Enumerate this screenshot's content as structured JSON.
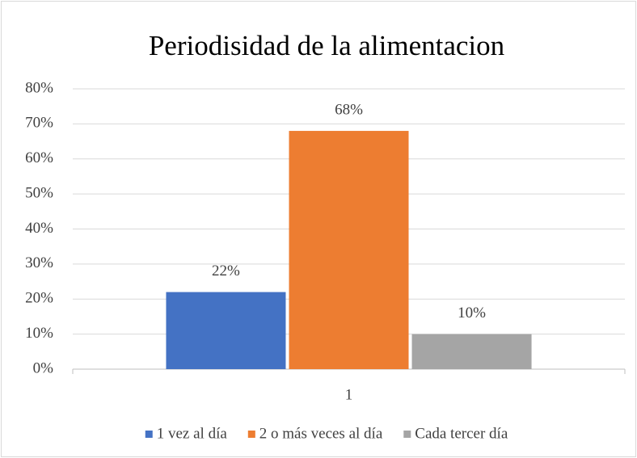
{
  "chart_data": {
    "type": "bar",
    "title": "Periodisidad de la alimentacion",
    "categories": [
      "1"
    ],
    "series": [
      {
        "name": "1 vez al día",
        "color": "#4472c4",
        "values": [
          22
        ],
        "value_labels": [
          "22%"
        ]
      },
      {
        "name": "2 o más veces al día",
        "color": "#ed7d31",
        "values": [
          68
        ],
        "value_labels": [
          "68%"
        ]
      },
      {
        "name": "Cada tercer día",
        "color": "#a5a5a5",
        "values": [
          10
        ],
        "value_labels": [
          "10%"
        ]
      }
    ],
    "ylim": [
      0,
      80
    ],
    "yticks": [
      {
        "value": 0,
        "label": "0%"
      },
      {
        "value": 10,
        "label": "10%"
      },
      {
        "value": 20,
        "label": "20%"
      },
      {
        "value": 30,
        "label": "30%"
      },
      {
        "value": 40,
        "label": "40%"
      },
      {
        "value": 50,
        "label": "50%"
      },
      {
        "value": 60,
        "label": "60%"
      },
      {
        "value": 70,
        "label": "70%"
      },
      {
        "value": 80,
        "label": "80%"
      }
    ],
    "grid": true,
    "legend": "bottom"
  }
}
